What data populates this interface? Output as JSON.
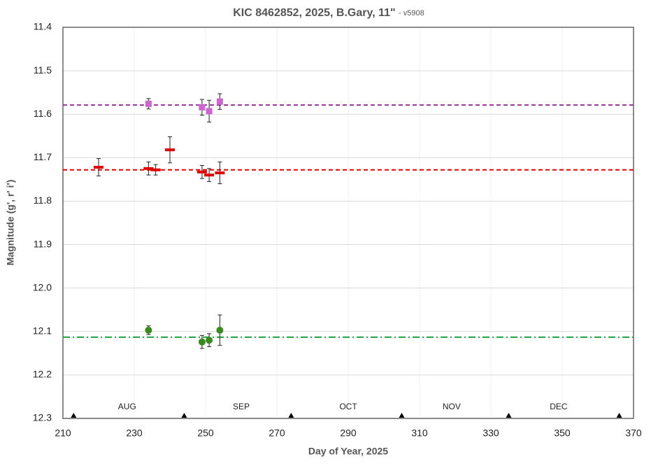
{
  "chart_data": {
    "type": "errorbar",
    "title": "KIC 8462852, 2025, B.Gary, 11\"",
    "subtitle": "- v5908",
    "x_label": "Day of Year, 2025",
    "y_label": "Magnitude (g', r' i')",
    "xlim": [
      210,
      370
    ],
    "xticks": [
      210,
      230,
      250,
      270,
      290,
      310,
      330,
      350,
      370
    ],
    "ylim": [
      11.4,
      12.3
    ],
    "y_reversed": true,
    "yticks": [
      11.4,
      11.5,
      11.6,
      11.7,
      11.8,
      11.9,
      {
        "value": 12,
        "label": "12.0"
      },
      12.1,
      12.2,
      12.3
    ],
    "grid": true,
    "series": [
      {
        "color": "#cc66cc",
        "marker": "square",
        "x": [
          234,
          249,
          251,
          254
        ],
        "values": [
          11.576,
          11.584,
          11.593,
          11.571
        ],
        "errors": [
          0.012,
          0.018,
          0.025,
          0.018
        ]
      },
      {
        "color": "#e00000",
        "marker": "dash",
        "x": [
          220,
          234,
          236,
          240,
          249,
          251,
          254
        ],
        "values": [
          11.722,
          11.725,
          11.728,
          11.682,
          11.733,
          11.74,
          11.735
        ],
        "errors": [
          0.02,
          0.015,
          0.012,
          0.03,
          0.015,
          0.015,
          0.025
        ]
      },
      {
        "color": "#3a8a20",
        "marker": "circle",
        "x": [
          234,
          249,
          251,
          254
        ],
        "values": [
          12.097,
          12.124,
          12.12,
          12.097
        ],
        "errors": [
          0.01,
          0.015,
          0.015,
          0.035
        ]
      }
    ],
    "hlines": [
      {
        "value": 11.579,
        "color": "#993399",
        "style": "dashed"
      },
      {
        "value": 11.728,
        "color": "#e00000",
        "style": "dashed"
      },
      {
        "value": 12.113,
        "color": "#20a040",
        "style": "dashdot"
      }
    ],
    "month_markers": [
      213,
      244,
      274,
      305,
      335,
      366
    ],
    "month_labels": [
      {
        "text": "AUG",
        "x": 228
      },
      {
        "text": "SEP",
        "x": 260
      },
      {
        "text": "OCT",
        "x": 290
      },
      {
        "text": "NOV",
        "x": 319
      },
      {
        "text": "DEC",
        "x": 349
      }
    ]
  }
}
